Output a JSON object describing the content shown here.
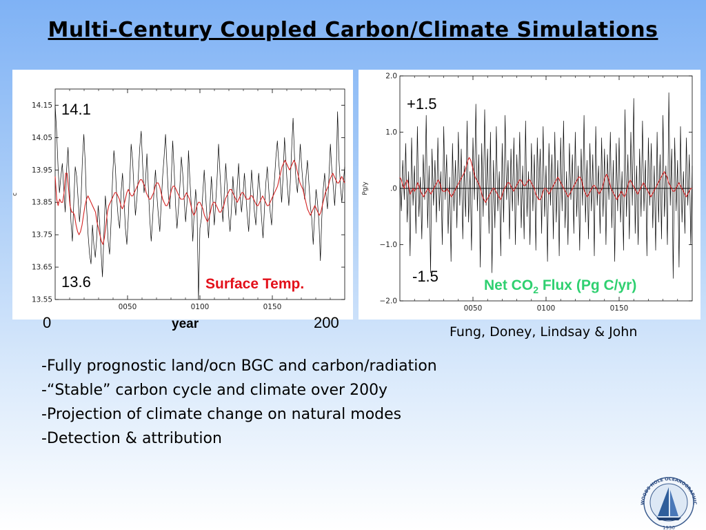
{
  "title": "Multi-Century Coupled Carbon/Climate Simulations",
  "left_panel": {
    "hi_label": "14.1",
    "lo_label": "13.6",
    "series_label": "Surface Temp.",
    "x_start": "0",
    "x_mid": "year",
    "x_end": "200"
  },
  "right_panel": {
    "hi_label": "+1.5",
    "lo_label": "-1.5",
    "series_label_a": "Net CO",
    "series_label_sub": "2",
    "series_label_b": " Flux (Pg C/yr)"
  },
  "credits": "Fung, Doney, Lindsay & John",
  "bullets": [
    "-Fully prognostic land/ocn BGC and carbon/radiation",
    "-“Stable” carbon cycle and climate over 200y",
    "-Projection of climate change on natural modes",
    "-Detection & attribution"
  ],
  "logo": {
    "text": "WOODS HOLE OCEANOGRAPHIC INSTITUTION",
    "year": "1930"
  },
  "colors": {
    "raw": "#000000",
    "smoothed": "#d42020",
    "temp_label": "#e3101a",
    "flux_label": "#2fd070"
  },
  "chart_data": [
    {
      "type": "line",
      "xlim": [
        0,
        200
      ],
      "ylim": [
        13.55,
        14.2
      ],
      "ylabel": "c",
      "xticks": [
        50,
        100,
        150
      ],
      "xtick_labels": [
        "0050",
        "0100",
        "0150"
      ],
      "yticks": [
        13.55,
        13.65,
        13.75,
        13.85,
        13.95,
        14.05,
        14.15
      ],
      "ytick_labels": [
        "13.55",
        "13.65",
        "13.75",
        "13.85",
        "13.95",
        "14.05",
        "14.15"
      ],
      "series": [
        {
          "values": [
            14.15,
            14.07,
            13.96,
            13.88,
            13.93,
            13.97,
            13.89,
            13.82,
            13.95,
            14.02,
            13.9,
            13.79,
            13.73,
            13.85,
            13.96,
            13.93,
            13.86,
            13.79,
            13.85,
            13.98,
            14.06,
            13.97,
            13.83,
            13.75,
            13.69,
            13.66,
            13.78,
            13.72,
            13.68,
            13.74,
            13.84,
            13.79,
            13.7,
            13.62,
            13.75,
            13.87,
            13.81,
            13.73,
            13.69,
            13.79,
            13.92,
            14.01,
            13.96,
            13.86,
            13.8,
            13.77,
            13.88,
            13.94,
            13.86,
            13.77,
            13.72,
            13.8,
            13.91,
            14.03,
            13.98,
            13.89,
            13.81,
            13.86,
            13.93,
            14.02,
            14.07,
            13.97,
            13.88,
            13.91,
            14.0,
            13.9,
            13.8,
            13.73,
            13.8,
            13.89,
            13.95,
            13.87,
            13.81,
            13.76,
            13.85,
            13.93,
            13.99,
            14.06,
            13.96,
            13.87,
            13.83,
            13.92,
            14.04,
            13.95,
            13.84,
            13.77,
            13.83,
            13.9,
            13.99,
            13.94,
            13.86,
            13.79,
            13.85,
            14.01,
            13.92,
            13.84,
            13.73,
            13.82,
            13.89,
            13.83,
            13.55,
            13.77,
            13.8,
            13.88,
            13.95,
            13.87,
            13.8,
            13.74,
            13.84,
            13.93,
            13.86,
            13.78,
            13.85,
            13.93,
            14.03,
            13.94,
            13.86,
            13.79,
            13.88,
            13.97,
            13.9,
            13.81,
            13.76,
            13.83,
            13.93,
            13.86,
            13.81,
            13.9,
            13.97,
            13.87,
            13.82,
            13.87,
            13.94,
            13.88,
            13.81,
            13.76,
            13.85,
            13.95,
            13.89,
            13.82,
            13.78,
            13.87,
            13.94,
            13.88,
            13.8,
            13.74,
            13.83,
            13.91,
            13.96,
            13.89,
            13.82,
            13.78,
            13.87,
            13.92,
            13.99,
            14.04,
            13.97,
            13.92,
            13.85,
            13.93,
            14.05,
            13.97,
            13.9,
            13.84,
            13.91,
            14.02,
            14.11,
            13.99,
            13.92,
            13.88,
            13.95,
            14.03,
            13.96,
            13.9,
            13.86,
            13.93,
            13.98,
            13.91,
            13.84,
            13.8,
            13.72,
            13.81,
            13.89,
            13.85,
            13.79,
            13.67,
            13.8,
            13.89,
            13.94,
            13.87,
            13.83,
            13.93,
            14.03,
            13.95,
            13.9,
            13.84,
            13.92,
            14.13,
            13.98,
            13.9,
            13.85,
            13.91,
            13.96
          ]
        },
        {
          "values": [
            13.93,
            13.86,
            13.84,
            13.86,
            13.85,
            13.85,
            13.88,
            13.94,
            13.94,
            13.89,
            13.84,
            13.82,
            13.82,
            13.81,
            13.78,
            13.76,
            13.75,
            13.76,
            13.78,
            13.81,
            13.84,
            13.86,
            13.87,
            13.86,
            13.85,
            13.84,
            13.83,
            13.82,
            13.79,
            13.77,
            13.75,
            13.73,
            13.72,
            13.74,
            13.78,
            13.82,
            13.84,
            13.85,
            13.86,
            13.87,
            13.88,
            13.88,
            13.87,
            13.86,
            13.84,
            13.83,
            13.84,
            13.86,
            13.88,
            13.89,
            13.88,
            13.87,
            13.87,
            13.88,
            13.89,
            13.9,
            13.91,
            13.92,
            13.92,
            13.91,
            13.9,
            13.88,
            13.87,
            13.86,
            13.86,
            13.87,
            13.88,
            13.9,
            13.91,
            13.91,
            13.9,
            13.88,
            13.86,
            13.85,
            13.84,
            13.84,
            13.85,
            13.87,
            13.89,
            13.9,
            13.9,
            13.89,
            13.88,
            13.87,
            13.86,
            13.86,
            13.86,
            13.87,
            13.88,
            13.87,
            13.86,
            13.84,
            13.82,
            13.81,
            13.82,
            13.84,
            13.85,
            13.85,
            13.84,
            13.83,
            13.81,
            13.8,
            13.79,
            13.8,
            13.82,
            13.84,
            13.85,
            13.85,
            13.84,
            13.83,
            13.82,
            13.82,
            13.83,
            13.84,
            13.86,
            13.87,
            13.88,
            13.89,
            13.89,
            13.88,
            13.87,
            13.86,
            13.85,
            13.86,
            13.87,
            13.88,
            13.88,
            13.87,
            13.86,
            13.86,
            13.86,
            13.87,
            13.87,
            13.86,
            13.85,
            13.84,
            13.84,
            13.85,
            13.86,
            13.87,
            13.86,
            13.85,
            13.84,
            13.84,
            13.85,
            13.86,
            13.87,
            13.88,
            13.89,
            13.9,
            13.92,
            13.94,
            13.96,
            13.97,
            13.98,
            13.97,
            13.96,
            13.95,
            13.96,
            13.97,
            13.98,
            13.97,
            13.95,
            13.93,
            13.91,
            13.9,
            13.89,
            13.87,
            13.85,
            13.83,
            13.82,
            13.81,
            13.82,
            13.83,
            13.84,
            13.83,
            13.82,
            13.81,
            13.82,
            13.84,
            13.86,
            13.88,
            13.89,
            13.9,
            13.92,
            13.93,
            13.94,
            13.93,
            13.92,
            13.91,
            13.91,
            13.92,
            13.93,
            13.92,
            13.91
          ]
        }
      ]
    },
    {
      "type": "line",
      "xlim": [
        0,
        200
      ],
      "ylim": [
        -2.0,
        2.0
      ],
      "ylabel": "Pg/y",
      "xticks": [
        50,
        100,
        150
      ],
      "xtick_labels": [
        "0050",
        "0100",
        "0150"
      ],
      "yticks": [
        -2.0,
        -1.0,
        0.0,
        1.0,
        2.0
      ],
      "ytick_labels": [
        "−2.0",
        "−1.0",
        ".0",
        "1.0",
        "2.0"
      ],
      "series": [
        {
          "values": [
            0.2,
            -0.4,
            0.5,
            -0.2,
            0.8,
            -0.6,
            0.3,
            -1.2,
            0.9,
            -0.3,
            0.4,
            -0.8,
            1.1,
            -0.5,
            0.2,
            -0.9,
            0.6,
            -0.2,
            1.3,
            -0.7,
            0.4,
            -1.5,
            0.7,
            -0.3,
            0.5,
            -0.6,
            0.9,
            -0.4,
            0.3,
            -1.0,
            1.1,
            -0.2,
            0.6,
            -0.8,
            0.2,
            -1.3,
            0.8,
            -0.4,
            0.5,
            -0.7,
            1.0,
            -0.3,
            0.7,
            -0.9,
            0.4,
            -0.5,
            1.2,
            -0.6,
            0.3,
            -1.1,
            0.9,
            -0.2,
            1.5,
            -0.4,
            0.6,
            -1.4,
            0.8,
            -0.5,
            1.4,
            -0.3,
            0.7,
            -0.8,
            1.0,
            -1.5,
            0.5,
            -0.7,
            1.1,
            -0.4,
            0.3,
            -1.2,
            0.8,
            -0.6,
            1.3,
            -0.2,
            0.5,
            -0.9,
            0.7,
            -0.4,
            0.9,
            -1.0,
            0.6,
            -0.3,
            1.0,
            -0.7,
            0.4,
            -0.9,
            1.2,
            -0.5,
            0.3,
            -1.0,
            0.8,
            -0.4,
            0.6,
            -1.1,
            0.9,
            -0.2,
            0.7,
            -0.8,
            1.1,
            -0.5,
            0.4,
            -1.3,
            0.8,
            -0.3,
            0.6,
            -0.9,
            1.0,
            -0.6,
            0.5,
            -1.2,
            0.9,
            -0.4,
            1.2,
            -0.7,
            0.3,
            -1.0,
            0.8,
            -0.2,
            0.6,
            -0.8,
            1.0,
            -0.5,
            0.4,
            -1.1,
            0.7,
            -0.3,
            1.3,
            -0.6,
            0.5,
            -0.9,
            0.8,
            -0.4,
            0.6,
            -1.2,
            1.1,
            -0.3,
            0.4,
            -0.8,
            0.9,
            -0.5,
            0.7,
            -1.0,
            0.6,
            -0.2,
            1.0,
            -0.7,
            0.5,
            -1.3,
            0.8,
            -0.4,
            0.9,
            -0.6,
            0.3,
            -1.1,
            1.4,
            -0.5,
            0.6,
            -0.9,
            1.0,
            -0.3,
            1.6,
            -0.8,
            0.4,
            -1.0,
            0.7,
            -0.5,
            1.2,
            -0.4,
            0.5,
            -1.2,
            0.9,
            -0.3,
            0.8,
            -0.7,
            0.4,
            -1.1,
            1.0,
            -0.6,
            0.6,
            -0.9,
            1.3,
            -0.5,
            0.4,
            -1.0,
            1.7,
            -0.3,
            0.7,
            -1.6,
            0.9,
            -0.4,
            0.5,
            -1.4,
            1.1,
            -0.6,
            0.3,
            -0.8,
            0.9,
            -0.3,
            0.6,
            -1.0,
            0.4
          ]
        },
        {
          "values": [
            0.2,
            0.15,
            0.05,
            0.0,
            0.1,
            0.15,
            0.05,
            -0.1,
            -0.05,
            0.0,
            -0.05,
            0.0,
            0.1,
            0.05,
            -0.05,
            -0.1,
            -0.15,
            -0.1,
            -0.05,
            0.0,
            -0.05,
            -0.1,
            -0.05,
            0.0,
            0.05,
            0.1,
            0.15,
            0.1,
            0.0,
            -0.05,
            -0.05,
            -0.05,
            0.0,
            -0.05,
            -0.1,
            -0.15,
            -0.1,
            -0.05,
            0.0,
            0.05,
            0.1,
            0.15,
            0.2,
            0.25,
            0.3,
            0.4,
            0.5,
            0.55,
            0.5,
            0.4,
            0.3,
            0.2,
            0.15,
            0.1,
            0.05,
            -0.05,
            -0.15,
            -0.2,
            -0.25,
            -0.2,
            -0.15,
            -0.1,
            -0.05,
            0.0,
            0.0,
            -0.05,
            -0.1,
            -0.15,
            -0.2,
            -0.15,
            -0.05,
            0.0,
            0.05,
            0.1,
            0.1,
            0.05,
            0.0,
            -0.05,
            0.0,
            0.05,
            0.1,
            0.15,
            0.15,
            0.1,
            0.05,
            0.05,
            0.1,
            0.15,
            0.15,
            0.1,
            0.05,
            0.0,
            -0.1,
            -0.15,
            -0.2,
            -0.2,
            -0.15,
            -0.05,
            0.0,
            0.0,
            -0.05,
            -0.1,
            -0.05,
            0.0,
            0.05,
            0.1,
            0.15,
            0.2,
            0.15,
            0.1,
            0.05,
            0.0,
            -0.05,
            -0.1,
            -0.15,
            -0.1,
            -0.05,
            0.0,
            0.05,
            0.1,
            0.15,
            0.2,
            0.2,
            0.15,
            0.05,
            -0.05,
            -0.1,
            -0.15,
            -0.1,
            -0.05,
            0.0,
            0.05,
            0.05,
            0.0,
            -0.05,
            -0.1,
            -0.05,
            0.0,
            0.1,
            0.2,
            0.25,
            0.2,
            0.1,
            0.0,
            -0.05,
            -0.1,
            -0.15,
            -0.2,
            -0.15,
            -0.1,
            -0.05,
            -0.1,
            -0.15,
            -0.1,
            0.0,
            0.1,
            0.15,
            0.1,
            0.05,
            0.0,
            -0.05,
            -0.1,
            -0.05,
            0.0,
            0.05,
            0.1,
            0.05,
            0.0,
            -0.05,
            -0.1,
            -0.15,
            -0.1,
            -0.05,
            0.0,
            0.05,
            0.1,
            0.15,
            0.2,
            0.25,
            0.3,
            0.25,
            0.2,
            0.1,
            0.05,
            0.0,
            -0.05,
            -0.05,
            0.0,
            0.05,
            0.1,
            0.05,
            0.0,
            -0.05,
            -0.1,
            -0.15,
            -0.1,
            -0.05,
            0.0,
            0.0
          ]
        }
      ]
    }
  ]
}
